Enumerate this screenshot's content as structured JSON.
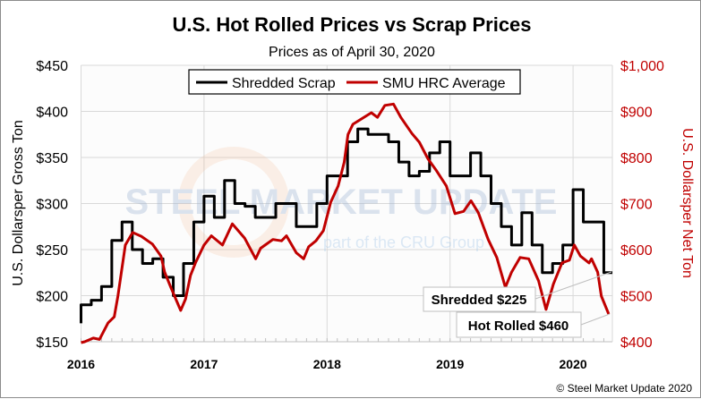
{
  "chart_data": {
    "type": "line",
    "title": "U.S. Hot Rolled Prices vs Scrap Prices",
    "subtitle": "Prices as of April 30, 2020",
    "ylabel_left": "U.S. Dollarsper Gross Ton",
    "ylabel_right": "U.S. Dollarsper Net Ton",
    "xlim": [
      2016,
      2020.33
    ],
    "ylim_left": [
      150,
      450
    ],
    "ylim_right": [
      400,
      1000
    ],
    "x_ticks": [
      "2016",
      "2017",
      "2018",
      "2019",
      "2020"
    ],
    "y_ticks_left": [
      "$150",
      "$200",
      "$250",
      "$300",
      "$350",
      "$400",
      "$450"
    ],
    "y_ticks_right": [
      "$400",
      "$500",
      "$600",
      "$700",
      "$800",
      "$900",
      "$1,000"
    ],
    "grid": true,
    "legend_position": "top-center",
    "series": [
      {
        "name": "Shredded Scrap",
        "axis": "left",
        "color": "#000000",
        "style": "step-monthly",
        "start": 2016,
        "values": [
          190,
          195,
          210,
          260,
          280,
          250,
          235,
          240,
          220,
          200,
          235,
          280,
          308,
          285,
          325,
          300,
          297,
          285,
          285,
          300,
          300,
          275,
          275,
          300,
          330,
          330,
          367,
          381,
          375,
          375,
          367,
          345,
          330,
          335,
          355,
          367,
          330,
          330,
          355,
          330,
          300,
          275,
          255,
          290,
          255,
          225,
          235,
          255,
          315,
          280,
          280,
          225
        ]
      },
      {
        "name": "SMU HRC Average",
        "axis": "right",
        "color": "#c00000",
        "points": [
          [
            2016.0,
            398
          ],
          [
            2016.03,
            400
          ],
          [
            2016.1,
            408
          ],
          [
            2016.15,
            405
          ],
          [
            2016.22,
            441
          ],
          [
            2016.27,
            454
          ],
          [
            2016.3,
            499
          ],
          [
            2016.36,
            610
          ],
          [
            2016.42,
            637
          ],
          [
            2016.49,
            629
          ],
          [
            2016.58,
            612
          ],
          [
            2016.65,
            586
          ],
          [
            2016.68,
            551
          ],
          [
            2016.73,
            518
          ],
          [
            2016.81,
            468
          ],
          [
            2016.85,
            493
          ],
          [
            2016.89,
            544
          ],
          [
            2016.93,
            571
          ],
          [
            2017.0,
            610
          ],
          [
            2017.06,
            630
          ],
          [
            2017.15,
            610
          ],
          [
            2017.23,
            656
          ],
          [
            2017.33,
            625
          ],
          [
            2017.42,
            580
          ],
          [
            2017.46,
            603
          ],
          [
            2017.56,
            622
          ],
          [
            2017.63,
            619
          ],
          [
            2017.67,
            630
          ],
          [
            2017.75,
            593
          ],
          [
            2017.81,
            580
          ],
          [
            2017.85,
            606
          ],
          [
            2017.91,
            619
          ],
          [
            2017.97,
            641
          ],
          [
            2018.03,
            703
          ],
          [
            2018.09,
            738
          ],
          [
            2018.14,
            790
          ],
          [
            2018.17,
            850
          ],
          [
            2018.21,
            872
          ],
          [
            2018.36,
            897
          ],
          [
            2018.41,
            887
          ],
          [
            2018.47,
            913
          ],
          [
            2018.54,
            916
          ],
          [
            2018.6,
            887
          ],
          [
            2018.69,
            852
          ],
          [
            2018.75,
            833
          ],
          [
            2018.82,
            797
          ],
          [
            2018.89,
            771
          ],
          [
            2018.97,
            738
          ],
          [
            2019.04,
            678
          ],
          [
            2019.11,
            683
          ],
          [
            2019.17,
            706
          ],
          [
            2019.23,
            680
          ],
          [
            2019.31,
            622
          ],
          [
            2019.38,
            583
          ],
          [
            2019.45,
            518
          ],
          [
            2019.5,
            551
          ],
          [
            2019.57,
            583
          ],
          [
            2019.64,
            580
          ],
          [
            2019.72,
            532
          ],
          [
            2019.78,
            470
          ],
          [
            2019.84,
            525
          ],
          [
            2019.91,
            571
          ],
          [
            2019.97,
            577
          ],
          [
            2020.01,
            610
          ],
          [
            2020.06,
            586
          ],
          [
            2020.13,
            571
          ],
          [
            2020.15,
            580
          ],
          [
            2020.2,
            551
          ],
          [
            2020.23,
            499
          ],
          [
            2020.29,
            460
          ]
        ]
      }
    ],
    "annotations": [
      "Shredded $225",
      "Hot Rolled $460"
    ],
    "watermark": [
      "STEEL MARKET UPDATE",
      "part of the CRU Group"
    ],
    "copyright": "© Steel Market Update 2020"
  }
}
